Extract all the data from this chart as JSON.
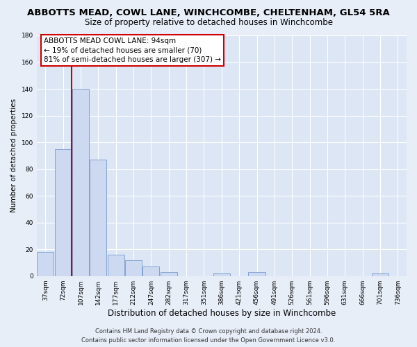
{
  "title": "ABBOTTS MEAD, COWL LANE, WINCHCOMBE, CHELTENHAM, GL54 5RA",
  "subtitle": "Size of property relative to detached houses in Winchcombe",
  "xlabel": "Distribution of detached houses by size in Winchcombe",
  "ylabel": "Number of detached properties",
  "bar_labels": [
    "37sqm",
    "72sqm",
    "107sqm",
    "142sqm",
    "177sqm",
    "212sqm",
    "247sqm",
    "282sqm",
    "317sqm",
    "351sqm",
    "386sqm",
    "421sqm",
    "456sqm",
    "491sqm",
    "526sqm",
    "561sqm",
    "596sqm",
    "631sqm",
    "666sqm",
    "701sqm",
    "736sqm"
  ],
  "bar_values": [
    18,
    95,
    140,
    87,
    16,
    12,
    7,
    3,
    0,
    0,
    2,
    0,
    3,
    0,
    0,
    0,
    0,
    0,
    0,
    2,
    0
  ],
  "bar_color": "#ccd9f0",
  "bar_edge_color": "#7799cc",
  "vline_x_index": 1.5,
  "vline_color": "#cc0000",
  "ylim": [
    0,
    180
  ],
  "yticks": [
    0,
    20,
    40,
    60,
    80,
    100,
    120,
    140,
    160,
    180
  ],
  "annotation_title": "ABBOTTS MEAD COWL LANE: 94sqm",
  "annotation_line1": "← 19% of detached houses are smaller (70)",
  "annotation_line2": "81% of semi-detached houses are larger (307) →",
  "annotation_box_color": "#ffffff",
  "annotation_box_edge": "#cc0000",
  "footer_line1": "Contains HM Land Registry data © Crown copyright and database right 2024.",
  "footer_line2": "Contains public sector information licensed under the Open Government Licence v3.0.",
  "bg_color": "#e8eef8",
  "plot_bg_color": "#dce6f5",
  "grid_color": "#ffffff",
  "title_fontsize": 9.5,
  "subtitle_fontsize": 8.5,
  "xlabel_fontsize": 8.5,
  "ylabel_fontsize": 7.5,
  "tick_fontsize": 6.5,
  "footer_fontsize": 6.0,
  "annotation_fontsize": 7.5
}
